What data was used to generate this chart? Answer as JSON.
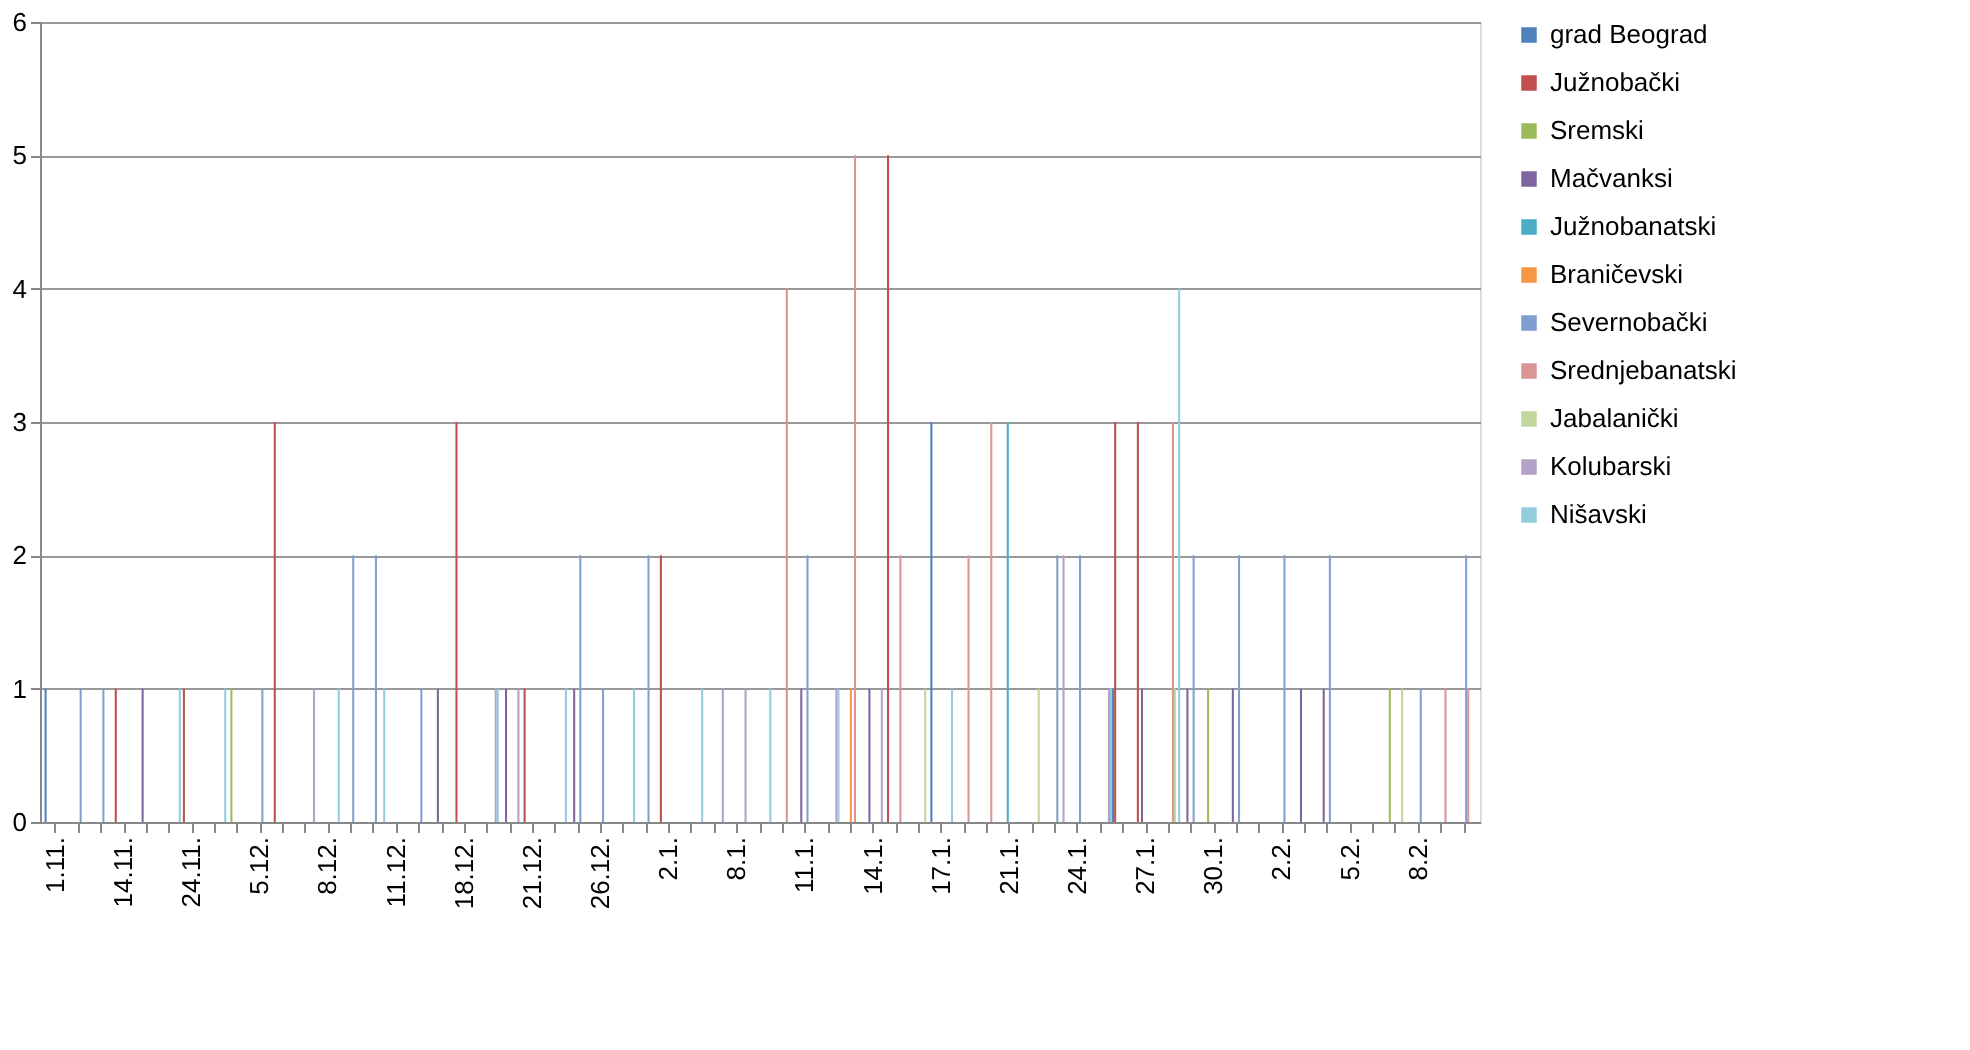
{
  "chart_data": {
    "type": "bar",
    "categories": [
      "1.11.",
      null,
      null,
      "14.11.",
      null,
      null,
      "24.11.",
      null,
      null,
      "5.12.",
      null,
      null,
      "8.12.",
      null,
      null,
      "11.12.",
      null,
      null,
      "18.12.",
      null,
      null,
      "21.12.",
      null,
      null,
      "26.12.",
      null,
      null,
      "2.1.",
      null,
      null,
      "8.1.",
      null,
      null,
      "11.1.",
      null,
      null,
      "14.1.",
      null,
      null,
      "17.1.",
      null,
      null,
      "21.1.",
      null,
      null,
      "24.1.",
      null,
      null,
      "27.1.",
      null,
      null,
      "30.1.",
      null,
      null,
      "2.2.",
      null,
      null,
      "5.2.",
      null,
      null,
      "8.2.",
      null,
      null
    ],
    "ylim": [
      0,
      6
    ],
    "yticks": [
      0,
      1,
      2,
      3,
      4,
      5,
      6
    ],
    "grid": "y",
    "legend": "right",
    "series": [
      {
        "name": "grad Beograd",
        "color": "#4f81bd",
        "values": [
          1,
          null,
          null,
          null,
          null,
          null,
          null,
          null,
          null,
          null,
          null,
          null,
          null,
          null,
          null,
          null,
          null,
          null,
          null,
          null,
          null,
          null,
          null,
          null,
          null,
          null,
          null,
          null,
          null,
          null,
          null,
          null,
          null,
          null,
          null,
          null,
          null,
          null,
          null,
          3,
          null,
          null,
          null,
          null,
          null,
          null,
          null,
          1,
          null,
          null,
          null,
          null,
          null,
          null,
          null,
          null,
          null,
          null,
          null,
          null,
          null,
          null,
          null
        ]
      },
      {
        "name": "Južnobački",
        "color": "#c0504d",
        "values": [
          null,
          null,
          null,
          1,
          null,
          null,
          1,
          null,
          null,
          null,
          3,
          null,
          null,
          null,
          null,
          null,
          null,
          null,
          3,
          null,
          null,
          1,
          null,
          null,
          null,
          null,
          null,
          2,
          null,
          null,
          null,
          null,
          null,
          null,
          null,
          null,
          null,
          5,
          null,
          null,
          null,
          null,
          null,
          null,
          null,
          null,
          null,
          3,
          3,
          null,
          null,
          null,
          null,
          null,
          null,
          null,
          null,
          null,
          null,
          null,
          null,
          null,
          null
        ]
      },
      {
        "name": "Sremski",
        "color": "#9bbb59",
        "values": [
          null,
          null,
          null,
          null,
          null,
          null,
          null,
          null,
          1,
          null,
          null,
          null,
          null,
          null,
          null,
          null,
          null,
          null,
          null,
          null,
          null,
          null,
          null,
          null,
          null,
          null,
          null,
          null,
          null,
          null,
          null,
          null,
          null,
          null,
          null,
          null,
          null,
          null,
          null,
          null,
          null,
          null,
          null,
          null,
          null,
          null,
          null,
          null,
          null,
          null,
          null,
          1,
          null,
          null,
          null,
          null,
          null,
          null,
          null,
          1,
          null,
          null,
          null
        ]
      },
      {
        "name": "Mačvanksi",
        "color": "#8064a2",
        "values": [
          null,
          null,
          null,
          null,
          1,
          null,
          null,
          null,
          null,
          null,
          null,
          null,
          null,
          null,
          null,
          null,
          null,
          1,
          null,
          null,
          1,
          null,
          null,
          1,
          null,
          null,
          null,
          null,
          null,
          null,
          null,
          null,
          null,
          1,
          null,
          null,
          1,
          null,
          null,
          null,
          null,
          null,
          null,
          null,
          null,
          null,
          null,
          null,
          1,
          null,
          1,
          null,
          1,
          null,
          null,
          1,
          1,
          null,
          null,
          null,
          null,
          null,
          null
        ]
      },
      {
        "name": "Južnobanatski",
        "color": "#4bacc6",
        "values": [
          null,
          null,
          null,
          null,
          null,
          null,
          null,
          null,
          null,
          null,
          null,
          null,
          null,
          null,
          null,
          null,
          null,
          null,
          null,
          null,
          null,
          null,
          null,
          null,
          null,
          null,
          null,
          null,
          null,
          null,
          null,
          null,
          null,
          null,
          null,
          null,
          null,
          null,
          null,
          null,
          null,
          null,
          3,
          null,
          null,
          null,
          null,
          null,
          null,
          null,
          null,
          null,
          null,
          null,
          null,
          null,
          null,
          null,
          null,
          null,
          null,
          null,
          null
        ]
      },
      {
        "name": "Braničevski",
        "color": "#f79646",
        "values": [
          null,
          null,
          null,
          null,
          null,
          null,
          null,
          null,
          null,
          null,
          null,
          null,
          null,
          null,
          null,
          null,
          null,
          null,
          null,
          null,
          null,
          null,
          null,
          null,
          null,
          null,
          null,
          null,
          null,
          null,
          null,
          null,
          null,
          null,
          null,
          1,
          null,
          null,
          null,
          null,
          null,
          null,
          null,
          null,
          null,
          null,
          null,
          null,
          null,
          null,
          null,
          null,
          null,
          null,
          null,
          null,
          null,
          null,
          null,
          null,
          null,
          null,
          null
        ]
      },
      {
        "name": "Severnobački",
        "color": "#7f9fd0",
        "values": [
          null,
          1,
          1,
          null,
          null,
          null,
          null,
          null,
          null,
          1,
          null,
          null,
          null,
          2,
          2,
          null,
          1,
          null,
          null,
          null,
          null,
          null,
          null,
          2,
          1,
          null,
          2,
          null,
          null,
          null,
          null,
          null,
          null,
          2,
          null,
          null,
          null,
          null,
          null,
          null,
          null,
          null,
          null,
          null,
          2,
          2,
          null,
          null,
          null,
          null,
          2,
          null,
          2,
          null,
          2,
          null,
          2,
          null,
          null,
          null,
          1,
          null,
          2
        ]
      },
      {
        "name": "Srednjebanatski",
        "color": "#d99694",
        "values": [
          null,
          null,
          null,
          null,
          null,
          null,
          null,
          null,
          null,
          null,
          null,
          null,
          null,
          null,
          null,
          null,
          null,
          null,
          null,
          null,
          null,
          null,
          null,
          null,
          null,
          null,
          null,
          null,
          null,
          null,
          null,
          null,
          4,
          null,
          null,
          5,
          null,
          2,
          null,
          null,
          2,
          3,
          null,
          null,
          null,
          null,
          null,
          null,
          null,
          3,
          null,
          null,
          null,
          null,
          null,
          null,
          null,
          null,
          null,
          null,
          null,
          1,
          1
        ]
      },
      {
        "name": "Jabalanički",
        "color": "#c3d69b",
        "values": [
          null,
          null,
          null,
          null,
          null,
          null,
          null,
          null,
          null,
          null,
          null,
          null,
          null,
          null,
          null,
          null,
          null,
          null,
          null,
          null,
          null,
          null,
          null,
          null,
          null,
          null,
          null,
          null,
          null,
          null,
          null,
          null,
          null,
          null,
          null,
          null,
          null,
          null,
          1,
          null,
          null,
          null,
          null,
          1,
          null,
          null,
          null,
          null,
          null,
          1,
          null,
          null,
          null,
          null,
          null,
          null,
          null,
          null,
          null,
          1,
          null,
          null,
          null
        ]
      },
      {
        "name": "Kolubarski",
        "color": "#b3a2c7",
        "values": [
          null,
          null,
          null,
          null,
          null,
          null,
          null,
          null,
          null,
          null,
          null,
          1,
          null,
          null,
          null,
          null,
          null,
          null,
          null,
          1,
          1,
          null,
          null,
          null,
          null,
          null,
          null,
          null,
          null,
          1,
          1,
          null,
          null,
          null,
          1,
          null,
          1,
          null,
          null,
          null,
          null,
          null,
          null,
          null,
          2,
          null,
          1,
          null,
          null,
          null,
          null,
          null,
          null,
          null,
          null,
          null,
          null,
          null,
          null,
          null,
          null,
          null,
          null
        ]
      },
      {
        "name": "Nišavski",
        "color": "#93cddd",
        "values": [
          null,
          null,
          null,
          null,
          null,
          1,
          null,
          1,
          null,
          null,
          null,
          null,
          1,
          null,
          1,
          null,
          null,
          null,
          null,
          1,
          null,
          null,
          1,
          null,
          null,
          1,
          null,
          null,
          1,
          null,
          null,
          1,
          null,
          null,
          1,
          null,
          null,
          null,
          null,
          1,
          null,
          null,
          null,
          null,
          null,
          null,
          1,
          null,
          null,
          4,
          null,
          null,
          null,
          null,
          null,
          null,
          null,
          null,
          null,
          null,
          null,
          null,
          null
        ]
      }
    ]
  }
}
